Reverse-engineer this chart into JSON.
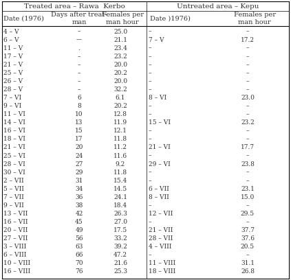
{
  "title_left": "Treated area – Rawa  Kerbo",
  "title_right": "Untreated area – Kepu",
  "header_left": [
    "Date (1976)",
    "Days after treat-\nman",
    "Females per\nman hour"
  ],
  "header_right": [
    "Date )1976)",
    "Females per\nman hour"
  ],
  "rows": [
    [
      "4 – V",
      "–",
      "25.0",
      "–",
      "–"
    ],
    [
      "6 – V",
      "––",
      "21.1",
      "7 – V",
      "17.2"
    ],
    [
      "11 – V",
      ".",
      "23.4",
      "–",
      "–"
    ],
    [
      "17 – V",
      "–",
      "23.2",
      "–",
      "–"
    ],
    [
      "21 – V",
      "–",
      "20.0",
      "–",
      "–"
    ],
    [
      "25 – V",
      "–",
      "20.2",
      "–",
      "–"
    ],
    [
      "26 – V",
      "–",
      "20.0",
      "–",
      "–"
    ],
    [
      "28 – V",
      "–",
      "32.2",
      "–",
      "–"
    ],
    [
      "7 – VI",
      "6",
      "6.1",
      "8 – VI",
      "23.0"
    ],
    [
      "9 – VI",
      "8",
      "20.2",
      "–",
      "–"
    ],
    [
      "11 – VI",
      "10",
      "12.8",
      "–",
      "–"
    ],
    [
      "14 – VI",
      "13",
      "11.9",
      "15 – VI",
      "23.2"
    ],
    [
      "16 – VI",
      "15",
      "12.1",
      "–",
      "–"
    ],
    [
      "18 – VI",
      "17",
      "11.8",
      "–",
      "–"
    ],
    [
      "21 – VI",
      "20",
      "11.2",
      "21 – VI",
      "17.7"
    ],
    [
      "25 – VI",
      "24",
      "11.6",
      "–",
      "–"
    ],
    [
      "28 – VI",
      "27",
      "9.2",
      "29 – VI",
      "23.8"
    ],
    [
      "30 – VI",
      "29",
      "11.8",
      "–",
      "–"
    ],
    [
      "2 – VII",
      "31",
      "15.4",
      "–",
      "–"
    ],
    [
      "5 – VII",
      "34",
      "14.5",
      "6 – VII",
      "23.1"
    ],
    [
      "7 – VII",
      "36",
      "24.1",
      "8 – VII",
      "15.0"
    ],
    [
      "9 – VII",
      "38",
      "18.4",
      "–",
      "–"
    ],
    [
      "13 – VII",
      "42",
      "26.3",
      "12 – VII",
      "29.5"
    ],
    [
      "16 – VII",
      "45",
      "27.0",
      "–",
      "–"
    ],
    [
      "20 – VII",
      "49",
      "17.5",
      "21 – VII",
      "37.7"
    ],
    [
      "27 – VII",
      "56",
      "33.2",
      "28 – VII",
      "37.6"
    ],
    [
      "3 – VIII",
      "63",
      "39.2",
      "4 – VIII",
      "20.5"
    ],
    [
      "6 – VIII",
      "66",
      "47.2",
      "–",
      "–"
    ],
    [
      "10 – VIII",
      "70",
      "21.6",
      "11 – VIII",
      "31.1"
    ],
    [
      "16 – VIII",
      "76",
      "25.3",
      "18 – VIII",
      "26.8"
    ]
  ],
  "bg_color": "#ffffff",
  "text_color": "#333333",
  "font_size": 6.5,
  "header_font_size": 7.0,
  "title_font_size": 7.5
}
